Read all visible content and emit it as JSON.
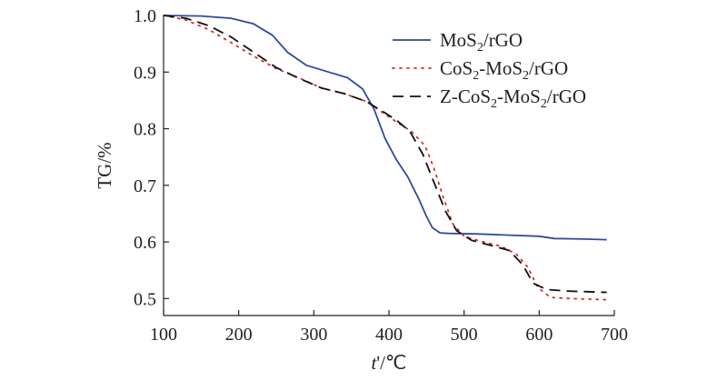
{
  "chart_data": {
    "type": "line",
    "xlabel_italic": "t",
    "xlabel_rest": "'/℃",
    "ylabel": "TG/%",
    "xlim": [
      100,
      700
    ],
    "ylim": [
      0.47,
      1.0
    ],
    "x_ticks": [
      "100",
      "200",
      "300",
      "400",
      "500",
      "600",
      "700"
    ],
    "y_ticks": [
      "0.5",
      "0.6",
      "0.7",
      "0.8",
      "0.9",
      "1.0"
    ],
    "legend_position": "top-right",
    "series": [
      {
        "name_parts": [
          "MoS",
          "2",
          "/rGO"
        ],
        "color": "#2e4a9e",
        "style": "solid",
        "points": [
          [
            100,
            1.0
          ],
          [
            150,
            0.999
          ],
          [
            190,
            0.995
          ],
          [
            220,
            0.985
          ],
          [
            245,
            0.965
          ],
          [
            265,
            0.935
          ],
          [
            290,
            0.912
          ],
          [
            320,
            0.9
          ],
          [
            345,
            0.89
          ],
          [
            365,
            0.87
          ],
          [
            380,
            0.835
          ],
          [
            395,
            0.782
          ],
          [
            410,
            0.745
          ],
          [
            425,
            0.715
          ],
          [
            440,
            0.675
          ],
          [
            450,
            0.645
          ],
          [
            458,
            0.625
          ],
          [
            468,
            0.616
          ],
          [
            480,
            0.615
          ],
          [
            520,
            0.614
          ],
          [
            560,
            0.612
          ],
          [
            600,
            0.61
          ],
          [
            620,
            0.606
          ],
          [
            660,
            0.605
          ],
          [
            690,
            0.604
          ]
        ]
      },
      {
        "name_parts": [
          "CoS",
          "2",
          "-MoS",
          "2",
          "/rGO"
        ],
        "color": "#d32f2f",
        "style": "dotted",
        "points": [
          [
            100,
            1.0
          ],
          [
            130,
            0.992
          ],
          [
            160,
            0.975
          ],
          [
            190,
            0.952
          ],
          [
            220,
            0.928
          ],
          [
            250,
            0.906
          ],
          [
            280,
            0.89
          ],
          [
            310,
            0.872
          ],
          [
            340,
            0.862
          ],
          [
            370,
            0.848
          ],
          [
            390,
            0.83
          ],
          [
            410,
            0.812
          ],
          [
            430,
            0.795
          ],
          [
            448,
            0.77
          ],
          [
            460,
            0.73
          ],
          [
            472,
            0.68
          ],
          [
            485,
            0.632
          ],
          [
            500,
            0.61
          ],
          [
            520,
            0.602
          ],
          [
            550,
            0.592
          ],
          [
            570,
            0.578
          ],
          [
            585,
            0.555
          ],
          [
            598,
            0.52
          ],
          [
            615,
            0.502
          ],
          [
            640,
            0.5
          ],
          [
            690,
            0.498
          ]
        ]
      },
      {
        "name_parts": [
          "Z-CoS",
          "2",
          "-MoS",
          "2",
          "/rGO"
        ],
        "color": "#111111",
        "style": "dashed",
        "points": [
          [
            100,
            1.0
          ],
          [
            130,
            0.995
          ],
          [
            160,
            0.982
          ],
          [
            190,
            0.962
          ],
          [
            220,
            0.935
          ],
          [
            250,
            0.908
          ],
          [
            280,
            0.889
          ],
          [
            310,
            0.872
          ],
          [
            340,
            0.862
          ],
          [
            370,
            0.848
          ],
          [
            390,
            0.832
          ],
          [
            410,
            0.815
          ],
          [
            428,
            0.795
          ],
          [
            445,
            0.755
          ],
          [
            460,
            0.705
          ],
          [
            475,
            0.655
          ],
          [
            490,
            0.62
          ],
          [
            510,
            0.603
          ],
          [
            535,
            0.594
          ],
          [
            560,
            0.585
          ],
          [
            578,
            0.56
          ],
          [
            592,
            0.527
          ],
          [
            610,
            0.516
          ],
          [
            640,
            0.513
          ],
          [
            690,
            0.511
          ]
        ]
      }
    ]
  }
}
